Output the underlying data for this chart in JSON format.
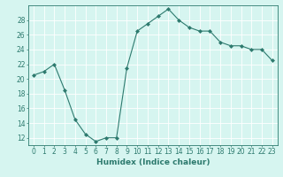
{
  "x": [
    0,
    1,
    2,
    3,
    4,
    5,
    6,
    7,
    8,
    9,
    10,
    11,
    12,
    13,
    14,
    15,
    16,
    17,
    18,
    19,
    20,
    21,
    22,
    23
  ],
  "y": [
    20.5,
    21.0,
    22.0,
    18.5,
    14.5,
    12.5,
    11.5,
    12.0,
    12.0,
    21.5,
    26.5,
    27.5,
    28.5,
    29.5,
    28.0,
    27.0,
    26.5,
    26.5,
    25.0,
    24.5,
    24.5,
    24.0,
    24.0,
    22.5
  ],
  "line_color": "#2d7a6e",
  "marker": "D",
  "marker_size": 2,
  "bg_color": "#d6f5f0",
  "grid_color": "#ffffff",
  "xlabel": "Humidex (Indice chaleur)",
  "xlim": [
    -0.5,
    23.5
  ],
  "ylim": [
    11,
    30
  ],
  "yticks": [
    12,
    14,
    16,
    18,
    20,
    22,
    24,
    26,
    28
  ],
  "xticks": [
    0,
    1,
    2,
    3,
    4,
    5,
    6,
    7,
    8,
    9,
    10,
    11,
    12,
    13,
    14,
    15,
    16,
    17,
    18,
    19,
    20,
    21,
    22,
    23
  ],
  "label_fontsize": 6.5,
  "tick_fontsize": 5.5
}
